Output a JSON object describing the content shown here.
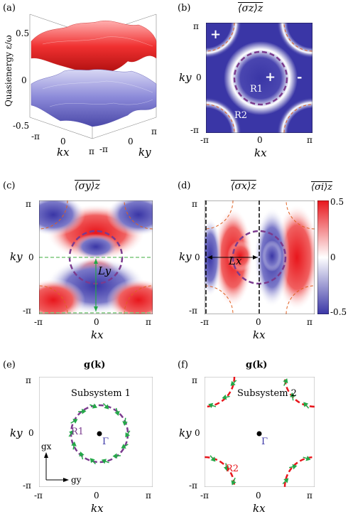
{
  "panels": {
    "a": {
      "label": "(a)",
      "zlabel": "Quasienergy ε/ω",
      "zticks": [
        "0.5",
        "0",
        "-0.5"
      ],
      "xlabel": "kx",
      "ylabel": "ky",
      "xticks": [
        "-π",
        "0",
        "π"
      ],
      "yticks": [
        "-π",
        "0",
        "π"
      ]
    },
    "b": {
      "label": "(b)",
      "title": "⟨σz⟩z",
      "signs": [
        "+",
        "+",
        "-"
      ],
      "regions": [
        "R1",
        "R2"
      ]
    },
    "c": {
      "label": "(c)",
      "title": "⟨σy⟩z",
      "length": "Ly"
    },
    "d": {
      "label": "(d)",
      "title": "⟨σx⟩z",
      "length": "Lx",
      "colorbar": {
        "title": "⟨σi⟩z",
        "ticks": [
          "0.5",
          "0",
          "-0.5"
        ]
      }
    },
    "e": {
      "label": "(e)",
      "title": "g(k)",
      "subtitle": "Subsystem 1",
      "region": "R1",
      "gamma": "Γ",
      "gx": "gx",
      "gy": "gy"
    },
    "f": {
      "label": "(f)",
      "title": "g(k)",
      "subtitle": "Subsystem 2",
      "region": "R2",
      "gamma": "Γ"
    }
  },
  "axes": {
    "x_ticks": [
      "-π",
      "0",
      "π"
    ],
    "y_ticks": [
      "π",
      "0",
      "-π"
    ],
    "xlabel": "kx",
    "ylabel": "ky"
  },
  "colors": {
    "red": "#e8161c",
    "blue": "#3a36a6",
    "purple": "#7b3b8e",
    "orange": "#e06020",
    "green": "#24a848",
    "green_dash": "#7fc97f"
  }
}
